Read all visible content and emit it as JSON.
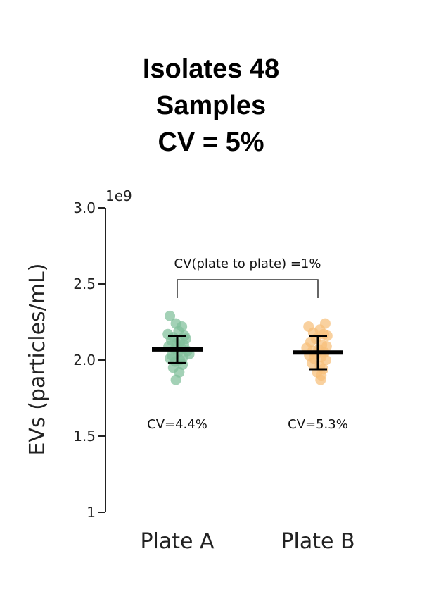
{
  "title_lines": [
    "Isolates 48",
    "Samples",
    "CV = 5%"
  ],
  "chart_data": {
    "type": "scatter",
    "ylabel": "EVs (particles/mL)",
    "y_exponent_label": "1e9",
    "ylim": [
      1.0,
      3.0
    ],
    "yticks": [
      1.0,
      1.5,
      2.0,
      2.5,
      3.0
    ],
    "ytick_labels": [
      "1",
      "1.5",
      "2.0",
      "2.5",
      "3.0"
    ],
    "categories": [
      "Plate A",
      "Plate B"
    ],
    "comparison_label": "CV(plate to plate) =1%",
    "series": [
      {
        "color": "#7fbf9a",
        "cv_label": "CV=4.4%",
        "mean": 2.07,
        "sd_low": 1.98,
        "sd_high": 2.16,
        "values": [
          2.29,
          2.24,
          2.22,
          2.19,
          2.17,
          2.16,
          2.15,
          2.14,
          2.13,
          2.12,
          2.11,
          2.1,
          2.09,
          2.08,
          2.07,
          2.06,
          2.05,
          2.04,
          2.03,
          2.02,
          2.01,
          2.0,
          1.99,
          1.97,
          1.95,
          1.92,
          1.87
        ],
        "jitter": [
          -0.11,
          -0.02,
          0.07,
          0.02,
          -0.14,
          0.11,
          -0.06,
          0.13,
          -0.09,
          0.04,
          -0.01,
          0.1,
          -0.13,
          0.06,
          -0.04,
          0.15,
          0.01,
          0.18,
          -0.08,
          0.09,
          -0.11,
          0.04,
          -0.03,
          0.08,
          -0.06,
          0.03,
          -0.02
        ]
      },
      {
        "color": "#f6bf7a",
        "cv_label": "CV=5.3%",
        "mean": 2.05,
        "sd_low": 1.94,
        "sd_high": 2.16,
        "values": [
          2.24,
          2.22,
          2.2,
          2.18,
          2.17,
          2.16,
          2.14,
          2.12,
          2.1,
          2.09,
          2.08,
          2.07,
          2.06,
          2.05,
          2.04,
          2.03,
          2.02,
          2.01,
          2.0,
          1.98,
          1.96,
          1.94,
          1.92,
          1.9,
          1.87
        ],
        "jitter": [
          0.11,
          -0.14,
          0.03,
          -0.07,
          0.09,
          0.14,
          -0.03,
          -0.11,
          0.06,
          0.13,
          -0.17,
          0.01,
          -0.08,
          0.1,
          -0.02,
          -0.13,
          0.05,
          -0.06,
          0.12,
          -0.09,
          0.03,
          0.08,
          -0.01,
          0.05,
          0.04
        ]
      }
    ]
  }
}
